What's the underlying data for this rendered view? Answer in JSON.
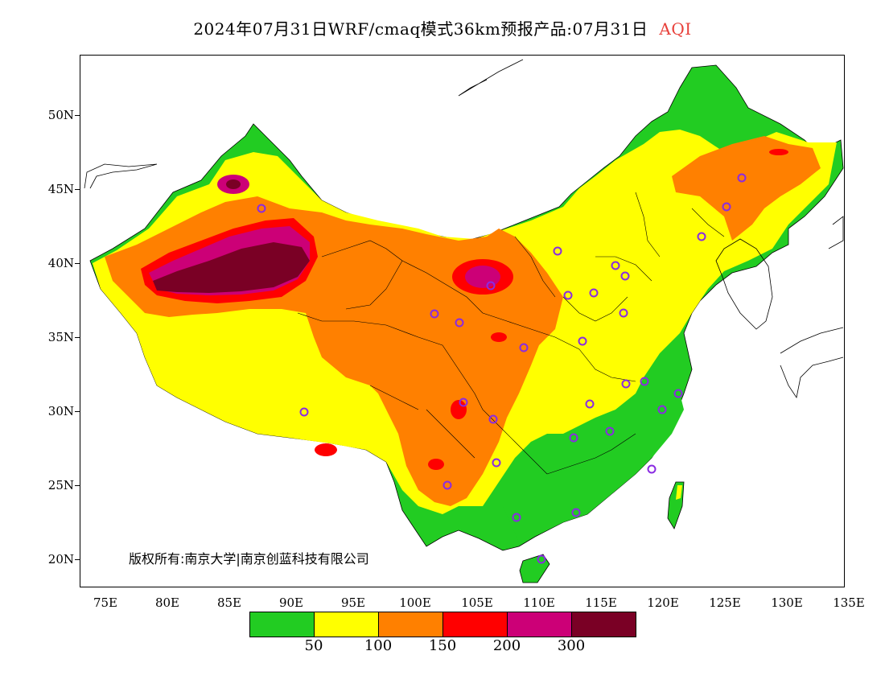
{
  "header": {
    "title": "2024年07月31日WRF/cmaq模式36km预报产品:07月31日",
    "variable": "AQI"
  },
  "axes": {
    "lat_labels": [
      "50N",
      "45N",
      "40N",
      "35N",
      "30N",
      "25N",
      "20N"
    ],
    "lon_labels": [
      "75E",
      "80E",
      "85E",
      "90E",
      "95E",
      "100E",
      "105E",
      "110E",
      "115E",
      "120E",
      "125E",
      "130E",
      "135E"
    ]
  },
  "copyright": "版权所有:南京大学|南京创蓝科技有限公司",
  "legend": {
    "colors": [
      "#22cc22",
      "#ffff00",
      "#ff8000",
      "#ff0000",
      "#cc0077",
      "#7a0025"
    ],
    "labels": [
      "50",
      "100",
      "150",
      "200",
      "300"
    ]
  },
  "icons": {
    "station_marker": "station-circle-icon"
  }
}
